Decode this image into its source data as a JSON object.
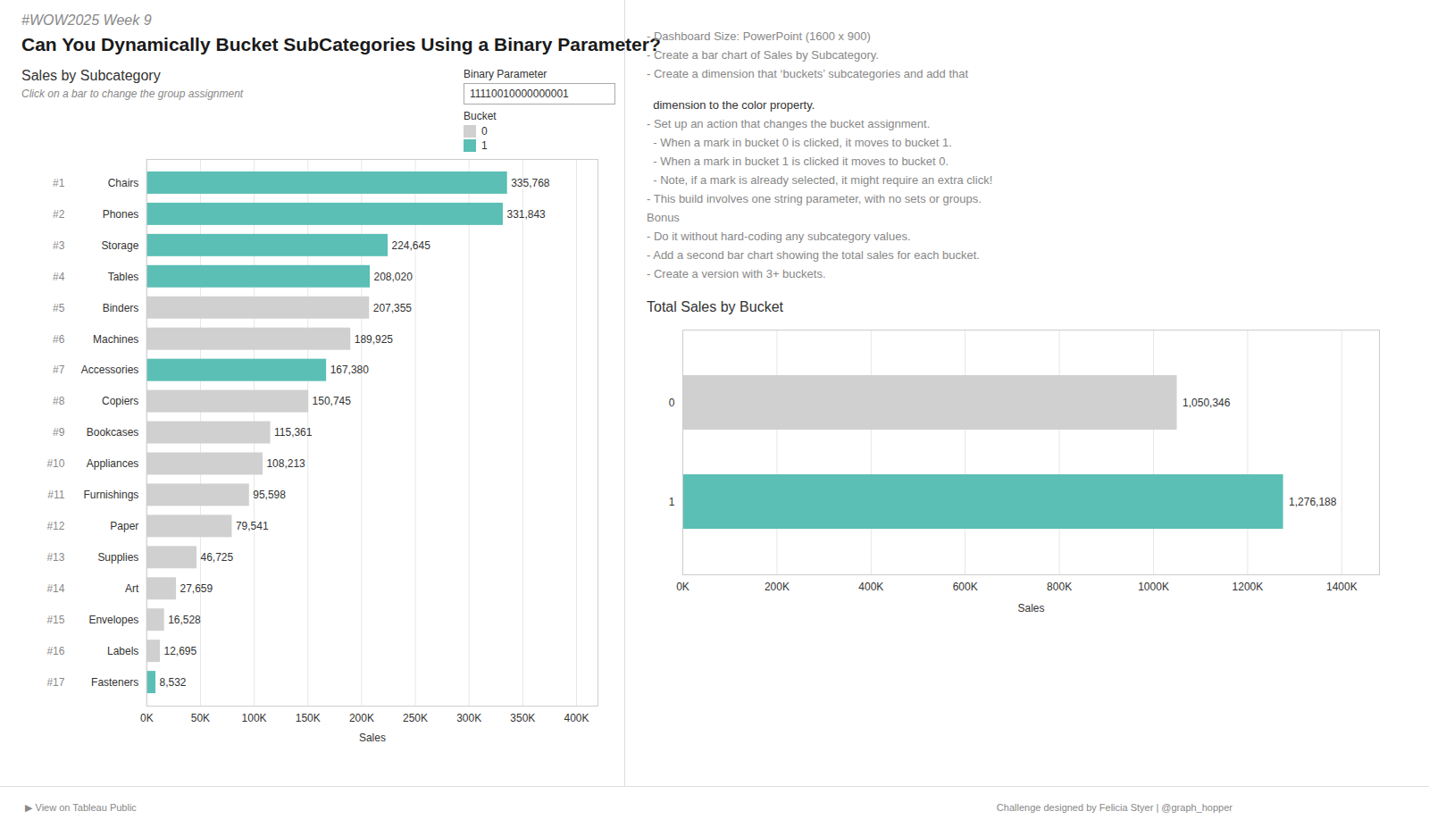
{
  "title": "#WOW2025 Week 9",
  "subtitle": "Can You Dynamically Bucket SubCategories Using a Binary Parameter?",
  "annotations": [
    "- Dashboard Size: PowerPoint (1600 x 900)",
    "- Create a bar chart of Sales by Subcategory.",
    "- Create a dimension that ‘buckets’ subcategories and add that",
    "  dimension to the color property.",
    "- Set up an action that changes the bucket assignment.",
    "  - When a mark in bucket 0 is clicked, it moves to bucket 1.",
    "  - When a mark in bucket 1 is clicked it moves to bucket 0.",
    "  - Note, if a mark is already selected, it might require an extra click!",
    "- This build involves one string parameter, with no sets or groups.",
    "Bonus",
    "- Do it without hard-coding any subcategory values.",
    "- Add a second bar chart showing the total sales for each bucket.",
    "- Create a version with 3+ buckets."
  ],
  "caption": [
    "▶  View on Tableau Public",
    "Challenge designed by Felicia Styer | @graph_hopper"
  ],
  "chart_data": [
    {
      "type": "bar",
      "orientation": "horizontal",
      "stacked": true,
      "title": "Sales by Subcategory",
      "subtitle": "Click on a bar to change the group assignment",
      "annotations": [
        "Binary Parameter",
        "11110010000000001",
        "Bucket"
      ],
      "categories": [
        "Chairs",
        "Phones",
        "Storage",
        "Tables",
        "Binders",
        "Machines",
        "Accessories",
        "Copiers",
        "Bookcases",
        "Appliances",
        "Furnishings",
        "Paper",
        "Supplies",
        "Art",
        "Envelopes",
        "Labels",
        "Fasteners"
      ],
      "ranks": [
        "#1",
        "#2",
        "#3",
        "#4",
        "#5",
        "#6",
        "#7",
        "#8",
        "#9",
        "#10",
        "#11",
        "#12",
        "#13",
        "#14",
        "#15",
        "#16",
        "#17"
      ],
      "series": [
        {
          "name": "0",
          "color": "#d0d0d0",
          "values": [
            null,
            null,
            null,
            null,
            207355,
            189925,
            null,
            150745,
            115361,
            108213,
            95598,
            79541,
            46725,
            27659,
            16528,
            12695,
            null
          ],
          "value_labels": [
            null,
            null,
            null,
            null,
            "207,355",
            "189,925",
            null,
            "150,745",
            "115,361",
            "108,213",
            "95,598",
            "79,541",
            "46,725",
            "27,659",
            "16,528",
            "12,695",
            null
          ]
        },
        {
          "name": "1",
          "color": "#5bbfb5",
          "values": [
            335768,
            331843,
            224645,
            208020,
            null,
            null,
            167380,
            null,
            null,
            null,
            null,
            null,
            null,
            null,
            null,
            null,
            8532
          ],
          "value_labels": [
            "335,768",
            "331,843",
            "224,645",
            "208,020",
            null,
            null,
            "167,380",
            null,
            null,
            null,
            null,
            null,
            null,
            null,
            null,
            null,
            "8,532"
          ]
        }
      ],
      "xlabel": "Sales",
      "xlim": [
        0,
        420000
      ],
      "xticks": [
        {
          "value": 0,
          "label": "0K"
        },
        {
          "value": 50000,
          "label": "50K"
        },
        {
          "value": 100000,
          "label": "100K"
        },
        {
          "value": 150000,
          "label": "150K"
        },
        {
          "value": 200000,
          "label": "200K"
        },
        {
          "value": 250000,
          "label": "250K"
        },
        {
          "value": 300000,
          "label": "300K"
        },
        {
          "value": 350000,
          "label": "350K"
        },
        {
          "value": 400000,
          "label": "400K"
        }
      ],
      "grid": true,
      "data_labels": true
    },
    {
      "type": "bar",
      "orientation": "horizontal",
      "title": "Total Sales by Bucket",
      "categories": [
        "0",
        "1"
      ],
      "values": [
        1050346,
        1276188
      ],
      "value_labels": [
        "1,050,346",
        "1,276,188"
      ],
      "colors": [
        "#d0d0d0",
        "#5bbfb5"
      ],
      "xlabel": "Sales",
      "xlim": [
        0,
        1480000
      ],
      "xticks": [
        {
          "value": 0,
          "label": "0K"
        },
        {
          "value": 200000,
          "label": "200K"
        },
        {
          "value": 400000,
          "label": "400K"
        },
        {
          "value": 600000,
          "label": "600K"
        },
        {
          "value": 800000,
          "label": "800K"
        },
        {
          "value": 1000000,
          "label": "1000K"
        },
        {
          "value": 1200000,
          "label": "1200K"
        },
        {
          "value": 1400000,
          "label": "1400K"
        }
      ],
      "grid": true,
      "data_labels": true
    }
  ]
}
